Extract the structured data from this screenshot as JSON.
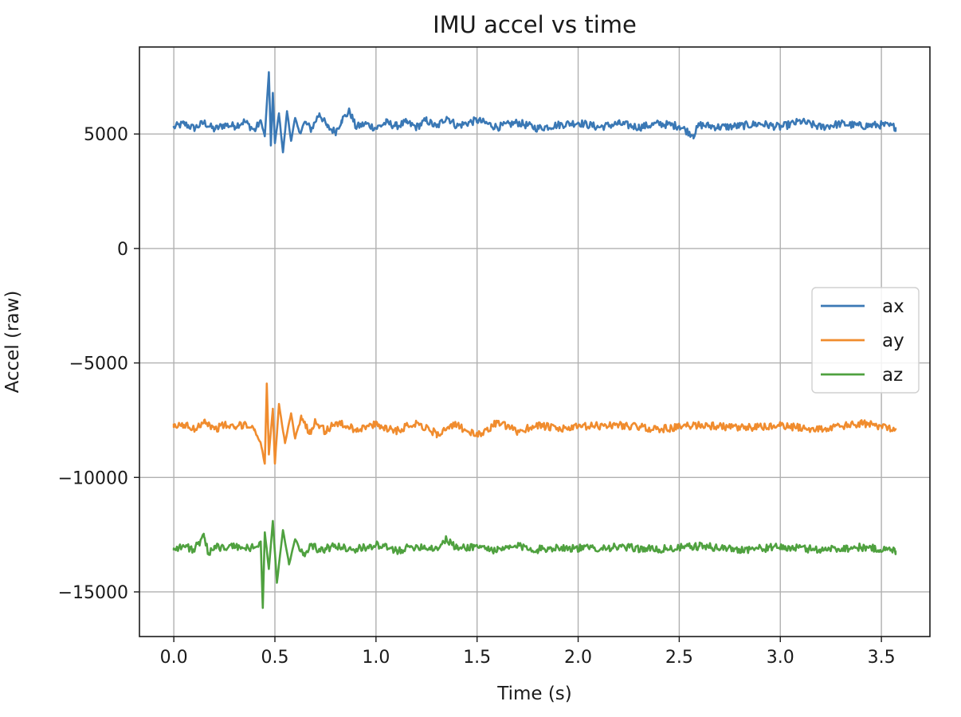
{
  "chart_data": {
    "type": "line",
    "title": "IMU accel vs time",
    "xlabel": "Time (s)",
    "ylabel": "Accel (raw)",
    "xlim": [
      -0.17,
      3.74
    ],
    "ylim": [
      -16950,
      8800
    ],
    "x_ticks": [
      0.0,
      0.5,
      1.0,
      1.5,
      2.0,
      2.5,
      3.0,
      3.5
    ],
    "x_tick_labels": [
      "0.0",
      "0.5",
      "1.0",
      "1.5",
      "2.0",
      "2.5",
      "3.0",
      "3.5"
    ],
    "y_ticks": [
      5000,
      0,
      -5000,
      -10000,
      -15000
    ],
    "y_tick_labels": [
      "5000",
      "0",
      "−5000",
      "−10000",
      "−15000"
    ],
    "grid": true,
    "legend_position": "center-right",
    "x_range": [
      0.0,
      3.57
    ],
    "series": [
      {
        "name": "ax",
        "color": "#3a78b5",
        "points": [
          [
            0.0,
            5300
          ],
          [
            0.05,
            5450
          ],
          [
            0.1,
            5250
          ],
          [
            0.15,
            5500
          ],
          [
            0.2,
            5200
          ],
          [
            0.25,
            5400
          ],
          [
            0.3,
            5350
          ],
          [
            0.35,
            5550
          ],
          [
            0.4,
            5150
          ],
          [
            0.43,
            5600
          ],
          [
            0.45,
            4900
          ],
          [
            0.47,
            7700
          ],
          [
            0.48,
            4500
          ],
          [
            0.49,
            6800
          ],
          [
            0.5,
            4600
          ],
          [
            0.52,
            5900
          ],
          [
            0.54,
            4200
          ],
          [
            0.56,
            6000
          ],
          [
            0.58,
            4700
          ],
          [
            0.6,
            5700
          ],
          [
            0.62,
            5100
          ],
          [
            0.65,
            5500
          ],
          [
            0.68,
            5200
          ],
          [
            0.72,
            5900
          ],
          [
            0.76,
            5300
          ],
          [
            0.8,
            5100
          ],
          [
            0.83,
            5600
          ],
          [
            0.87,
            6000
          ],
          [
            0.9,
            5300
          ],
          [
            0.95,
            5450
          ],
          [
            1.0,
            5250
          ],
          [
            1.05,
            5500
          ],
          [
            1.1,
            5350
          ],
          [
            1.15,
            5500
          ],
          [
            1.2,
            5300
          ],
          [
            1.25,
            5600
          ],
          [
            1.3,
            5300
          ],
          [
            1.35,
            5750
          ],
          [
            1.4,
            5350
          ],
          [
            1.5,
            5600
          ],
          [
            1.6,
            5300
          ],
          [
            1.7,
            5500
          ],
          [
            1.8,
            5250
          ],
          [
            1.9,
            5400
          ],
          [
            2.0,
            5500
          ],
          [
            2.1,
            5300
          ],
          [
            2.2,
            5450
          ],
          [
            2.3,
            5300
          ],
          [
            2.4,
            5450
          ],
          [
            2.5,
            5350
          ],
          [
            2.57,
            4950
          ],
          [
            2.6,
            5400
          ],
          [
            2.7,
            5300
          ],
          [
            2.8,
            5350
          ],
          [
            2.9,
            5450
          ],
          [
            3.0,
            5300
          ],
          [
            3.1,
            5550
          ],
          [
            3.2,
            5300
          ],
          [
            3.3,
            5450
          ],
          [
            3.4,
            5350
          ],
          [
            3.5,
            5400
          ],
          [
            3.57,
            5300
          ]
        ]
      },
      {
        "name": "ay",
        "color": "#f08c2e",
        "points": [
          [
            0.0,
            -7800
          ],
          [
            0.05,
            -7700
          ],
          [
            0.1,
            -7900
          ],
          [
            0.15,
            -7500
          ],
          [
            0.2,
            -7900
          ],
          [
            0.25,
            -7700
          ],
          [
            0.3,
            -7850
          ],
          [
            0.35,
            -7650
          ],
          [
            0.4,
            -7900
          ],
          [
            0.43,
            -8500
          ],
          [
            0.45,
            -9400
          ],
          [
            0.46,
            -5900
          ],
          [
            0.47,
            -9000
          ],
          [
            0.49,
            -7000
          ],
          [
            0.5,
            -9400
          ],
          [
            0.52,
            -6800
          ],
          [
            0.55,
            -8500
          ],
          [
            0.58,
            -7200
          ],
          [
            0.6,
            -8300
          ],
          [
            0.63,
            -7300
          ],
          [
            0.67,
            -8100
          ],
          [
            0.7,
            -7500
          ],
          [
            0.75,
            -8000
          ],
          [
            0.8,
            -7600
          ],
          [
            0.9,
            -7900
          ],
          [
            1.0,
            -7700
          ],
          [
            1.1,
            -7950
          ],
          [
            1.2,
            -7600
          ],
          [
            1.3,
            -8100
          ],
          [
            1.4,
            -7700
          ],
          [
            1.5,
            -8200
          ],
          [
            1.6,
            -7600
          ],
          [
            1.7,
            -8000
          ],
          [
            1.8,
            -7700
          ],
          [
            1.9,
            -7900
          ],
          [
            2.0,
            -7800
          ],
          [
            2.2,
            -7700
          ],
          [
            2.4,
            -7900
          ],
          [
            2.6,
            -7700
          ],
          [
            2.8,
            -7850
          ],
          [
            3.0,
            -7750
          ],
          [
            3.2,
            -7900
          ],
          [
            3.4,
            -7650
          ],
          [
            3.57,
            -7850
          ]
        ]
      },
      {
        "name": "az",
        "color": "#4fa13f",
        "points": [
          [
            0.0,
            -13100
          ],
          [
            0.05,
            -13000
          ],
          [
            0.1,
            -13150
          ],
          [
            0.15,
            -12600
          ],
          [
            0.17,
            -13300
          ],
          [
            0.2,
            -13000
          ],
          [
            0.25,
            -13100
          ],
          [
            0.3,
            -13000
          ],
          [
            0.35,
            -13100
          ],
          [
            0.4,
            -13050
          ],
          [
            0.43,
            -12800
          ],
          [
            0.44,
            -15700
          ],
          [
            0.45,
            -12400
          ],
          [
            0.47,
            -14000
          ],
          [
            0.49,
            -11900
          ],
          [
            0.51,
            -14600
          ],
          [
            0.54,
            -12300
          ],
          [
            0.57,
            -13800
          ],
          [
            0.6,
            -12700
          ],
          [
            0.64,
            -13400
          ],
          [
            0.68,
            -12900
          ],
          [
            0.72,
            -13200
          ],
          [
            0.8,
            -13000
          ],
          [
            0.9,
            -13150
          ],
          [
            1.0,
            -12950
          ],
          [
            1.1,
            -13200
          ],
          [
            1.2,
            -13000
          ],
          [
            1.3,
            -13100
          ],
          [
            1.35,
            -12700
          ],
          [
            1.4,
            -13100
          ],
          [
            1.5,
            -13000
          ],
          [
            1.6,
            -13200
          ],
          [
            1.7,
            -13000
          ],
          [
            1.8,
            -13150
          ],
          [
            1.9,
            -13050
          ],
          [
            2.0,
            -13100
          ],
          [
            2.2,
            -13050
          ],
          [
            2.4,
            -13150
          ],
          [
            2.6,
            -13000
          ],
          [
            2.8,
            -13150
          ],
          [
            3.0,
            -13050
          ],
          [
            3.2,
            -13150
          ],
          [
            3.4,
            -13050
          ],
          [
            3.57,
            -13200
          ]
        ]
      }
    ]
  }
}
